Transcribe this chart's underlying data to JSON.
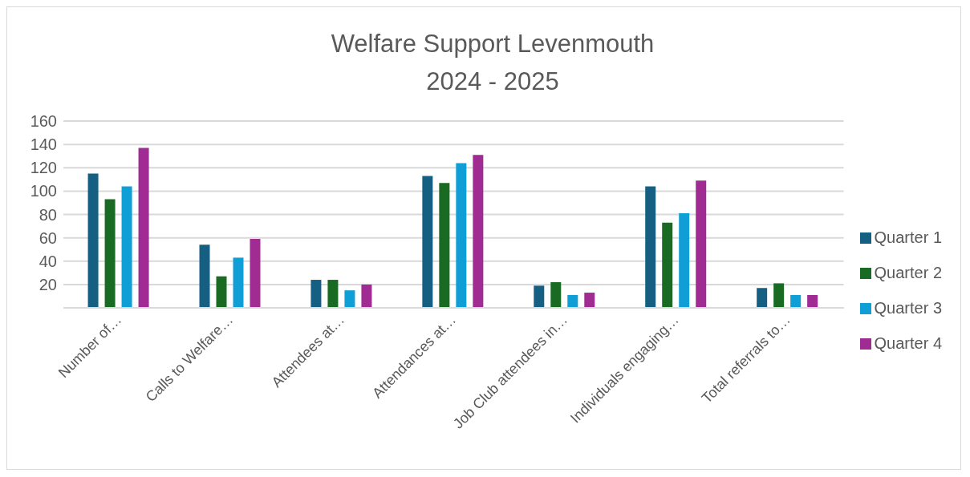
{
  "chart_data": {
    "type": "bar",
    "title": "Welfare Support Levenmouth\n2024 - 2025",
    "categories": [
      "Number of…",
      "Calls to Welfare…",
      "Attendees at…",
      "Attendances at…",
      "Job Club attendees in…",
      "Individuals engaging…",
      "Total referrals to…"
    ],
    "series": [
      {
        "name": "Quarter 1",
        "color": "#156082",
        "values": [
          115,
          54,
          24,
          113,
          19,
          104,
          17
        ]
      },
      {
        "name": "Quarter 2",
        "color": "#196b24",
        "values": [
          93,
          27,
          24,
          107,
          22,
          73,
          21
        ]
      },
      {
        "name": "Quarter 3",
        "color": "#0f9ed5",
        "values": [
          104,
          43,
          15,
          124,
          11,
          81,
          11
        ]
      },
      {
        "name": "Quarter 4",
        "color": "#a02b93",
        "values": [
          137,
          59,
          20,
          131,
          13,
          109,
          11
        ]
      }
    ],
    "ylim": [
      0,
      160
    ],
    "yticks": [
      {
        "value": 0,
        "label": null
      },
      20,
      40,
      60,
      80,
      100,
      120,
      140,
      160
    ],
    "grid": "y",
    "legend": "right"
  }
}
